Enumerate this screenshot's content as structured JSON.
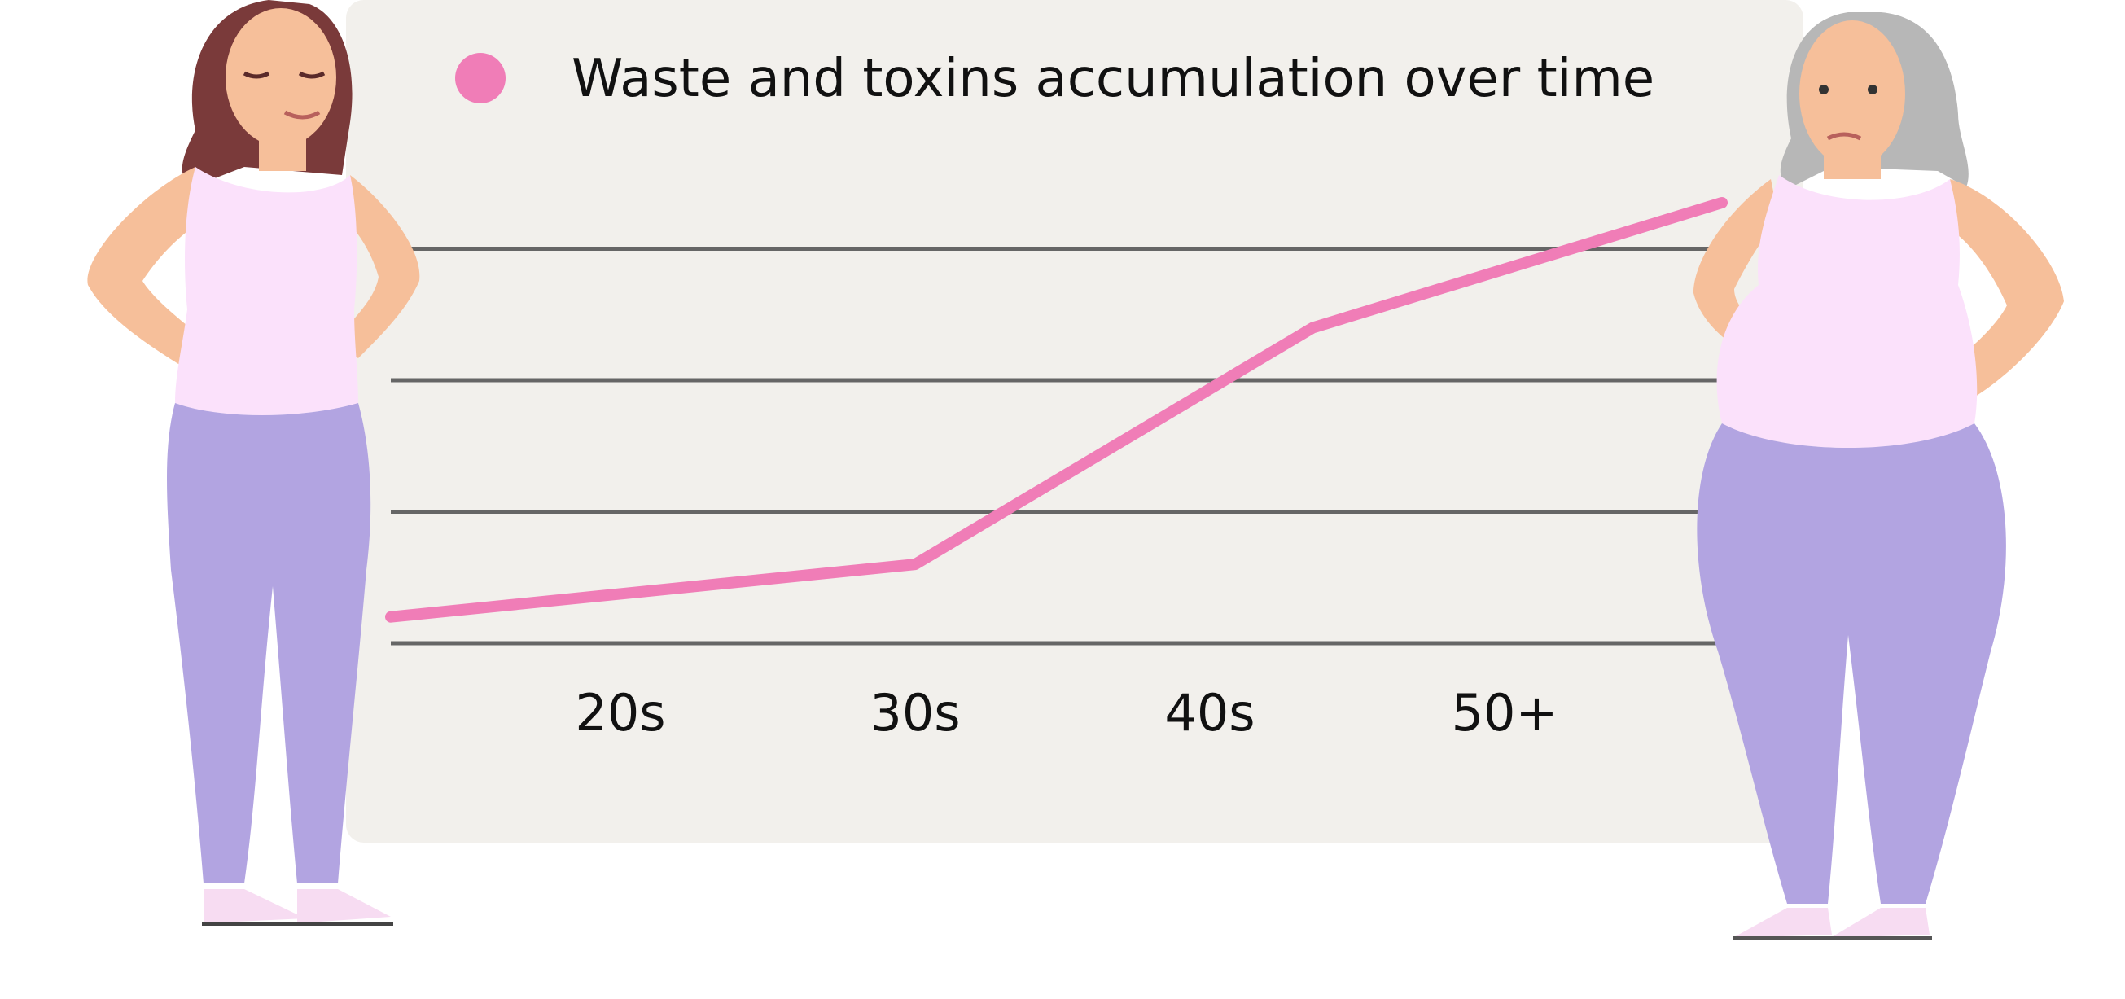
{
  "colors": {
    "panel": "#f2f0ec",
    "series": "#f07db7",
    "grid": "#666666",
    "text": "#111111",
    "skin": "#f6bf9a",
    "top": "#fbe1fb",
    "pants": "#b2a4e1",
    "hair_young": "#7a3a3a",
    "hair_old": "#b7b7b7",
    "shoes": "#f7dcf2"
  },
  "illustrations": {
    "left": "young-woman-figure",
    "right": "older-woman-figure"
  },
  "chart_data": {
    "type": "line",
    "title": "",
    "xlabel": "",
    "ylabel": "",
    "grid": true,
    "y_ticks_labeled": false,
    "legend": {
      "placement": "top-left",
      "entries": [
        "Waste and toxins accumulation over time"
      ]
    },
    "categories": [
      "20s",
      "30s",
      "40s",
      "50+"
    ],
    "ylim": [
      0,
      4
    ],
    "series": [
      {
        "name": "Waste and toxins accumulation over time",
        "color": "#f07db7",
        "x": [
          0,
          1,
          2.35,
          4.3
        ],
        "y": [
          0.2,
          0.6,
          2.4,
          3.35
        ]
      }
    ]
  }
}
